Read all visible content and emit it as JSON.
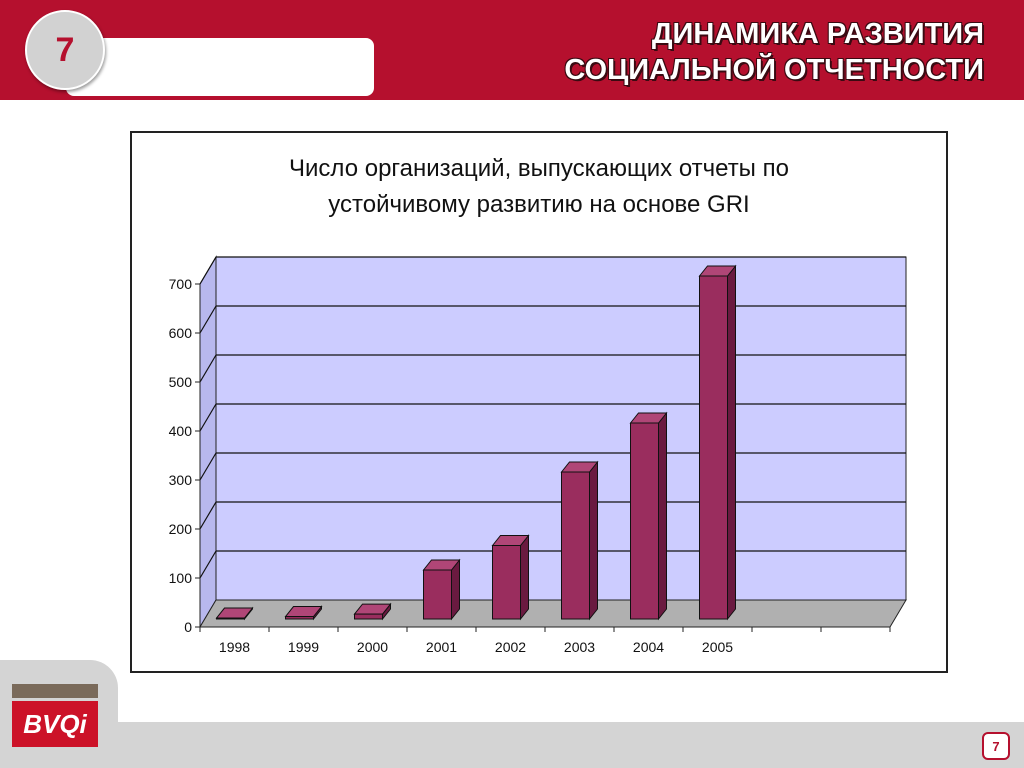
{
  "header": {
    "slide_number": "7",
    "title_line1": "ДИНАМИКА РАЗВИТИЯ",
    "title_line2": "СОЦИАЛЬНОЙ ОТЧЕТНОСТИ"
  },
  "footer": {
    "logo_text": "BVQi",
    "page_number": "7"
  },
  "colors": {
    "brand_red": "#b5102e",
    "bar_color": "#9a2d5e",
    "plot_background": "#ccccff"
  },
  "chart_data": {
    "type": "bar",
    "title_line1": "Число организаций, выпускающих отчеты по",
    "title_line2": "устойчивому развитию на основе GRI",
    "categories": [
      "1998",
      "1999",
      "2000",
      "2001",
      "2002",
      "2003",
      "2004",
      "2005",
      "",
      ""
    ],
    "values": [
      2,
      5,
      10,
      100,
      150,
      300,
      400,
      700,
      null,
      null
    ],
    "y_ticks": [
      "0",
      "100",
      "200",
      "300",
      "400",
      "500",
      "600",
      "700"
    ],
    "ylim": [
      0,
      700
    ],
    "grid": true,
    "style": "3d"
  }
}
